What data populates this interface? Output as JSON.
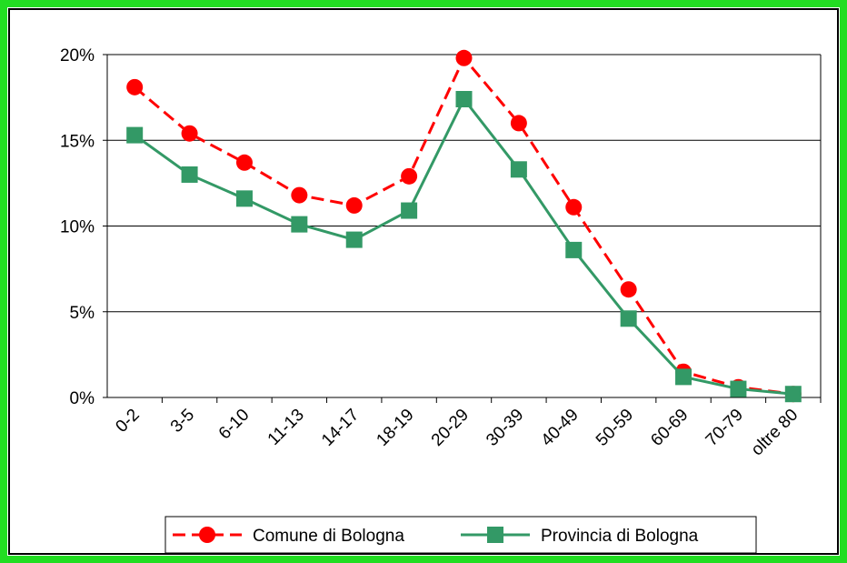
{
  "chart_data": {
    "type": "line",
    "categories": [
      "0-2",
      "3-5",
      "6-10",
      "11-13",
      "14-17",
      "18-19",
      "20-29",
      "30-39",
      "40-49",
      "50-59",
      "60-69",
      "70-79",
      "oltre 80"
    ],
    "series": [
      {
        "name": "Comune di Bologna",
        "color": "#ff0000",
        "values": [
          18.1,
          15.4,
          13.7,
          11.8,
          11.2,
          12.9,
          19.8,
          16.0,
          11.1,
          6.3,
          1.5,
          0.6,
          0.2
        ]
      },
      {
        "name": "Provincia di Bologna",
        "color": "#339966",
        "values": [
          15.3,
          13.0,
          11.6,
          10.1,
          9.2,
          10.9,
          17.4,
          13.3,
          8.6,
          4.6,
          1.2,
          0.5,
          0.2
        ]
      }
    ],
    "ylim": [
      0,
      20
    ],
    "yticks": [
      {
        "value": 0,
        "label": "0%"
      },
      {
        "value": 5,
        "label": "5%"
      },
      {
        "value": 10,
        "label": "10%"
      },
      {
        "value": 15,
        "label": "15%"
      },
      {
        "value": 20,
        "label": "20%"
      }
    ],
    "grid": true,
    "legend": "bottom"
  }
}
